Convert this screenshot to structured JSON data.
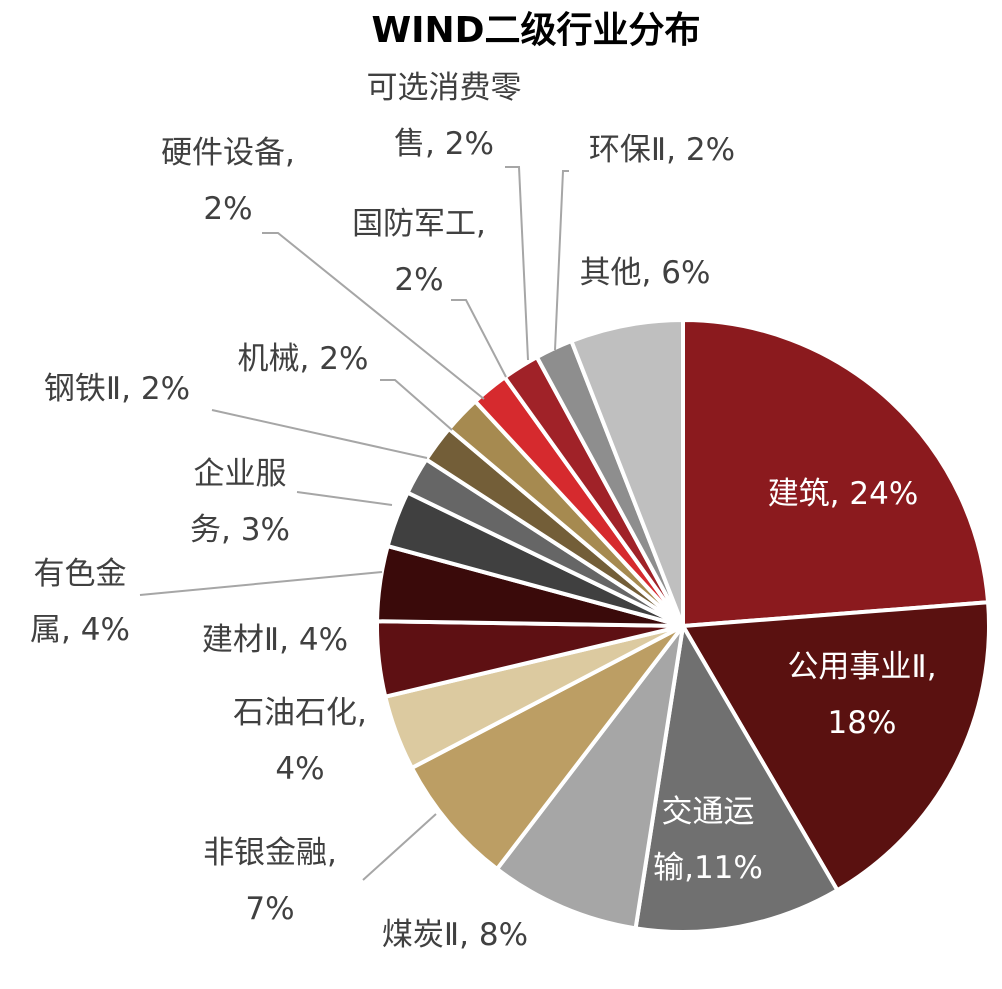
{
  "chart_data": {
    "type": "pie",
    "title": "WIND二级行业分布",
    "start_angle_deg": 0,
    "direction": "clockwise",
    "legend": "none",
    "slices": [
      {
        "name": "建筑",
        "value": 24,
        "label_lines": [
          "建筑, 24%"
        ],
        "color": "#8B1A1E",
        "label_inside": true
      },
      {
        "name": "公用事业Ⅱ",
        "value": 18,
        "label_lines": [
          "公用事业Ⅱ,",
          "18%"
        ],
        "color": "#5A1110",
        "label_inside": true
      },
      {
        "name": "交通运输",
        "value": 11,
        "label_lines": [
          "交通运",
          "输,11%"
        ],
        "color": "#707070",
        "label_inside": true
      },
      {
        "name": "煤炭Ⅱ",
        "value": 8,
        "label_lines": [
          "煤炭Ⅱ, 8%"
        ],
        "color": "#A6A6A6",
        "label_inside": false
      },
      {
        "name": "非银金融",
        "value": 7,
        "label_lines": [
          "非银金融,",
          "7%"
        ],
        "color": "#BC9E64",
        "label_inside": false
      },
      {
        "name": "石油石化",
        "value": 4,
        "label_lines": [
          "石油石化,",
          "4%"
        ],
        "color": "#DCCAA0",
        "label_inside": false
      },
      {
        "name": "建材Ⅱ",
        "value": 4,
        "label_lines": [
          "建材Ⅱ, 4%"
        ],
        "color": "#5E1013",
        "label_inside": false
      },
      {
        "name": "有色金属",
        "value": 4,
        "label_lines": [
          "有色金",
          "属, 4%"
        ],
        "color": "#3A0A0A",
        "label_inside": false
      },
      {
        "name": "企业服务",
        "value": 3,
        "label_lines": [
          "企业服",
          "务, 3%"
        ],
        "color": "#404040",
        "label_inside": false
      },
      {
        "name": "钢铁Ⅱ",
        "value": 2,
        "label_lines": [
          "钢铁Ⅱ, 2%"
        ],
        "color": "#666666",
        "label_inside": false
      },
      {
        "name": "机械",
        "value": 2,
        "label_lines": [
          "机械, 2%"
        ],
        "color": "#735E38",
        "label_inside": false
      },
      {
        "name": "硬件设备",
        "value": 2,
        "label_lines": [
          "硬件设备,",
          "2%"
        ],
        "color": "#A68A50",
        "label_inside": false
      },
      {
        "name": "国防军工",
        "value": 2,
        "label_lines": [
          "国防军工,",
          "2%"
        ],
        "color": "#D62A2E",
        "label_inside": false
      },
      {
        "name": "可选消费零售",
        "value": 2,
        "label_lines": [
          "可选消费零",
          "售, 2%"
        ],
        "color": "#A02228",
        "label_inside": false
      },
      {
        "name": "环保Ⅱ",
        "value": 2,
        "label_lines": [
          "环保Ⅱ, 2%"
        ],
        "color": "#8E8E8E",
        "label_inside": false
      },
      {
        "name": "其他",
        "value": 6,
        "label_lines": [
          "其他, 6%"
        ],
        "color": "#BFBFBF",
        "label_inside": false
      }
    ]
  }
}
